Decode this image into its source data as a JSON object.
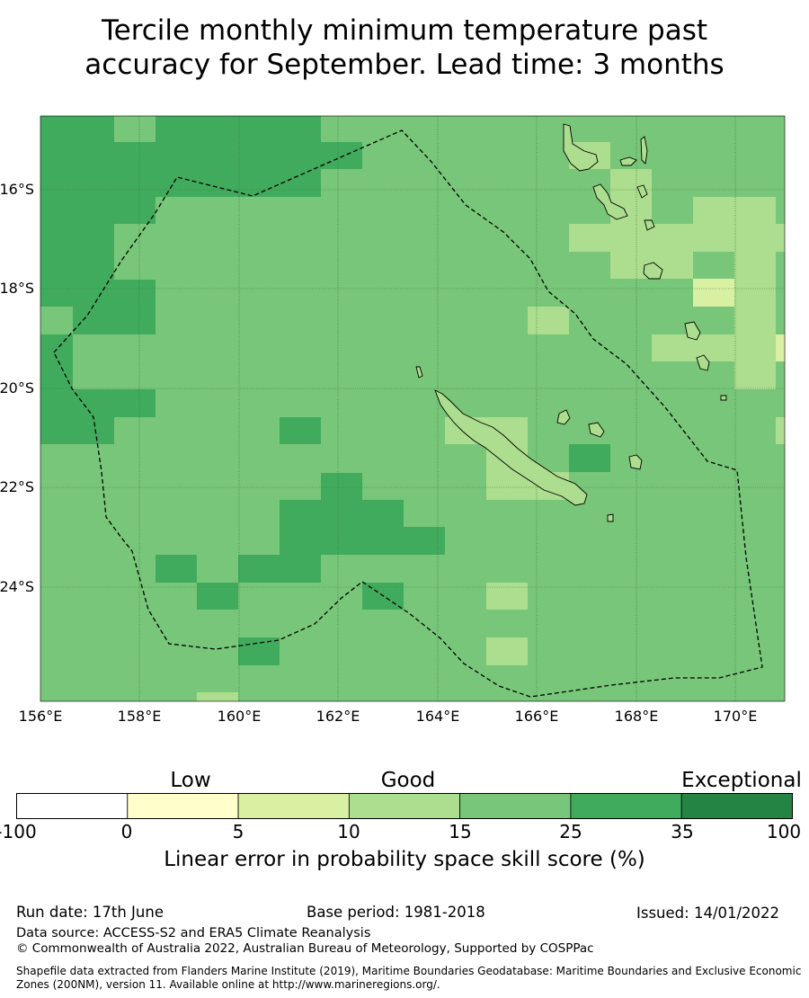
{
  "title_line1": "Tercile monthly minimum temperature past",
  "title_line2": "accuracy for September. Lead time: 3 months",
  "map": {
    "lat_ticks": [
      "16°S",
      "18°S",
      "20°S",
      "22°S",
      "24°S"
    ],
    "lon_ticks": [
      "156°E",
      "158°E",
      "160°E",
      "162°E",
      "164°E",
      "166°E",
      "168°E",
      "170°E"
    ]
  },
  "colorbar": {
    "categories": [
      "Low",
      "Good",
      "Exceptional"
    ],
    "ticks": [
      "-100",
      "0",
      "5",
      "10",
      "15",
      "25",
      "35",
      "100"
    ],
    "colors": [
      "#ffffff",
      "#ffffcc",
      "#d9f0a3",
      "#addd8e",
      "#78c679",
      "#41ab5d",
      "#238443"
    ],
    "label": "Linear error in probability space skill score (%)"
  },
  "footer": {
    "run_date": "Run date: 17th June",
    "base_period": "Base period: 1981-2018",
    "issued": "Issued: 14/01/2022",
    "data_source": "Data source: ACCESS-S2 and ERA5 Climate Reanalysis",
    "copyright": "© Commonwealth of Australia 2022, Australian Bureau of Meteorology, Supported by COSPPac",
    "shapefile": "Shapefile data extracted from Flanders Marine Institute (2019), Maritime Boundaries Geodatabase: Maritime Boundaries and Exclusive Economic Zones (200NM), version 11. Available online at http://www.marineregions.org/."
  }
}
